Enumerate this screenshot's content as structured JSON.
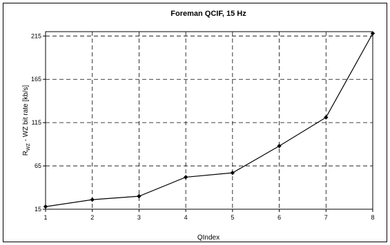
{
  "chart_data": {
    "type": "line",
    "title": "Foreman QCIF, 15 Hz",
    "xlabel": "QIndex",
    "ylabel_main": "R",
    "ylabel_sub": "WZ",
    "ylabel_rest": " - WZ bit rate [kb/s]",
    "x": [
      1,
      2,
      3,
      4,
      5,
      6,
      7,
      8
    ],
    "series": [
      {
        "values": [
          18,
          26,
          30,
          52,
          57,
          88,
          121,
          218
        ]
      }
    ],
    "xlim": [
      1,
      8
    ],
    "ylim": [
      15,
      220
    ],
    "xticks": [
      "1",
      "2",
      "3",
      "4",
      "5",
      "6",
      "7",
      "8"
    ],
    "yticks": [
      15,
      65,
      115,
      165,
      215
    ],
    "ytick_labels": [
      "15",
      "65",
      "115",
      "165",
      "215"
    ],
    "grid": true,
    "grid_style": "dashed",
    "line_color": "#000000",
    "marker": "diamond"
  }
}
